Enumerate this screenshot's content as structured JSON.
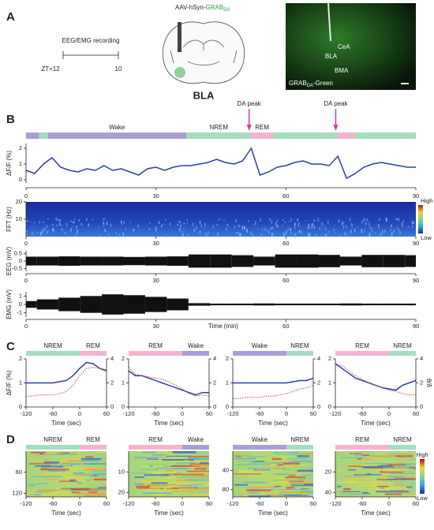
{
  "figure": {
    "letters": [
      "A",
      "B",
      "C",
      "D"
    ],
    "state_colors": {
      "Wake": "#aa9fd4",
      "NREM": "#a6dcbf",
      "REM": "#f5b3d2"
    },
    "panel_a": {
      "recording": "EEG/EMG recording",
      "start": "ZT=12",
      "end": "10",
      "virus_prefix": "AAV-hSyn-",
      "sensor": "GRAB",
      "sensor_sub": "DA",
      "region": "BLA",
      "image_labels": [
        "CeA",
        "BLA",
        "BMA"
      ],
      "caption_sensor": "GRAB",
      "caption_sub": "DA",
      "caption_suffix": "-Green"
    }
  },
  "chart_data": [
    {
      "type": "line",
      "ylabel": "ΔF/F (%)",
      "xlim": [
        0,
        90
      ],
      "xticks": [
        0,
        30,
        60,
        90
      ],
      "ylim": [
        -0.2,
        2.3
      ],
      "yticks": [
        0,
        1,
        2
      ],
      "segments": [
        {
          "state": "Wake",
          "start": 0,
          "end": 3
        },
        {
          "state": "NREM",
          "start": 3,
          "end": 5
        },
        {
          "state": "Wake",
          "start": 5,
          "end": 37
        },
        {
          "state": "NREM",
          "start": 37,
          "end": 52
        },
        {
          "state": "REM",
          "start": 52,
          "end": 57
        },
        {
          "state": "NREM",
          "start": 57,
          "end": 72
        },
        {
          "state": "REM",
          "start": 72,
          "end": 76
        },
        {
          "state": "NREM",
          "start": 76,
          "end": 90
        }
      ],
      "annotations": [
        {
          "text": "DA peak",
          "x": 51.5
        },
        {
          "text": "DA peak",
          "x": 71.5
        }
      ],
      "x": [
        0,
        2,
        4,
        6,
        8,
        10,
        12,
        14,
        16,
        18,
        20,
        22,
        24,
        26,
        28,
        30,
        32,
        34,
        36,
        38,
        40,
        42,
        44,
        46,
        48,
        50,
        52,
        54,
        56,
        58,
        60,
        62,
        64,
        66,
        68,
        70,
        72,
        74,
        76,
        78,
        80,
        82,
        84,
        86,
        88,
        90
      ],
      "series": [
        {
          "color": "#2d3f9f",
          "values": [
            0.6,
            0.4,
            1.0,
            1.4,
            0.8,
            0.6,
            0.5,
            0.7,
            0.6,
            0.9,
            0.6,
            0.7,
            0.5,
            0.3,
            0.7,
            0.8,
            0.6,
            0.8,
            0.9,
            0.9,
            1.0,
            1.1,
            1.3,
            1.1,
            1.0,
            1.2,
            2.0,
            0.3,
            0.5,
            0.8,
            0.9,
            1.1,
            1.2,
            1.0,
            1.0,
            0.9,
            1.5,
            0.1,
            0.4,
            0.8,
            1.0,
            1.1,
            1.0,
            0.9,
            0.8,
            0.8
          ]
        }
      ]
    },
    {
      "type": "heatmap",
      "ylabel": "FFT (Hz)",
      "xlim": [
        0,
        90
      ],
      "xticks": [
        0,
        30,
        60,
        90
      ],
      "ylim": [
        0,
        20
      ],
      "yticks": [
        10,
        20
      ],
      "colorbar": [
        "High",
        "Low"
      ]
    },
    {
      "type": "envelope",
      "ylabel": "EEG (mV)",
      "xlim": [
        0,
        90
      ],
      "xticks": [
        0,
        30,
        60,
        90
      ],
      "ylim": [
        -0.7,
        0.7
      ],
      "yticks": [
        -0.5,
        0,
        0.5
      ],
      "color": "#111111",
      "x": [
        0,
        5,
        10,
        15,
        20,
        25,
        30,
        35,
        40,
        45,
        50,
        55,
        60,
        65,
        70,
        75,
        80,
        85,
        90
      ],
      "values": [
        0.3,
        0.3,
        0.32,
        0.3,
        0.3,
        0.28,
        0.3,
        0.32,
        0.45,
        0.45,
        0.4,
        0.3,
        0.45,
        0.45,
        0.42,
        0.3,
        0.42,
        0.42,
        0.4
      ]
    },
    {
      "type": "envelope",
      "ylabel": "EMG (mV)",
      "xlabel": "Time (min)",
      "xlim": [
        0,
        90
      ],
      "xticks": [
        0,
        30,
        60,
        90
      ],
      "ylim": [
        -1.5,
        1.5
      ],
      "yticks": [
        -1,
        0,
        1
      ],
      "color": "#111111",
      "x": [
        0,
        5,
        10,
        15,
        20,
        25,
        30,
        35,
        40,
        45,
        50,
        55,
        60,
        65,
        70,
        75,
        80,
        85,
        90
      ],
      "values": [
        0.4,
        0.6,
        0.8,
        1.0,
        1.2,
        1.1,
        0.9,
        0.7,
        0.15,
        0.1,
        0.1,
        0.12,
        0.1,
        0.1,
        0.1,
        0.12,
        0.1,
        0.1,
        0.1
      ]
    },
    {
      "type": "line",
      "ylabel": "ΔF/F (%)",
      "xlabel": "Time (sec)",
      "xlim": [
        -120,
        60
      ],
      "xticks": [
        -120,
        -60,
        0,
        60
      ],
      "ylim": [
        0,
        2
      ],
      "yticks": [
        0,
        1,
        2
      ],
      "y2lim": [
        0,
        4
      ],
      "y2ticks": [
        0,
        2,
        4
      ],
      "segments": [
        {
          "state": "NREM",
          "start": -120,
          "end": 0
        },
        {
          "state": "REM",
          "start": 0,
          "end": 60
        }
      ],
      "x": [
        -120,
        -105,
        -90,
        -75,
        -60,
        -45,
        -30,
        -15,
        0,
        15,
        30,
        45,
        60
      ],
      "series": [
        {
          "color": "#2d3f9f",
          "values": [
            1.0,
            1.0,
            1.0,
            1.0,
            1.0,
            1.05,
            1.1,
            1.3,
            1.6,
            1.85,
            1.8,
            1.6,
            1.5
          ]
        },
        {
          "color": "#d9403a",
          "axis": "y2",
          "dash": true,
          "values": [
            0.9,
            0.9,
            1.0,
            1.0,
            1.0,
            1.1,
            1.3,
            1.8,
            2.6,
            3.2,
            3.3,
            3.2,
            3.1
          ]
        }
      ]
    },
    {
      "type": "line",
      "xlabel": "Time (sec)",
      "xlim": [
        -120,
        60
      ],
      "xticks": [
        -120,
        -60,
        0,
        60
      ],
      "ylim": [
        0,
        2
      ],
      "yticks": [
        0,
        1,
        2
      ],
      "y2lim": [
        0,
        4
      ],
      "y2ticks": [
        0,
        2,
        4
      ],
      "segments": [
        {
          "state": "REM",
          "start": -120,
          "end": 0
        },
        {
          "state": "Wake",
          "start": 0,
          "end": 60
        }
      ],
      "x": [
        -120,
        -105,
        -90,
        -75,
        -60,
        -45,
        -30,
        -15,
        0,
        15,
        30,
        45,
        60
      ],
      "series": [
        {
          "color": "#2d3f9f",
          "values": [
            1.5,
            1.3,
            1.3,
            1.2,
            1.1,
            1.0,
            0.9,
            0.8,
            0.7,
            0.6,
            0.5,
            0.6,
            0.6
          ]
        },
        {
          "color": "#d9403a",
          "axis": "y2",
          "dash": true,
          "values": [
            3.3,
            2.7,
            2.6,
            2.5,
            2.4,
            2.3,
            2.1,
            1.8,
            1.5,
            1.1,
            0.9,
            1.0,
            0.9
          ]
        }
      ]
    },
    {
      "type": "line",
      "xlabel": "Time (sec)",
      "xlim": [
        -120,
        60
      ],
      "xticks": [
        -120,
        -60,
        0,
        60
      ],
      "ylim": [
        0,
        2
      ],
      "yticks": [
        0,
        1,
        2
      ],
      "y2lim": [
        0,
        4
      ],
      "y2ticks": [
        0,
        2,
        4
      ],
      "segments": [
        {
          "state": "Wake",
          "start": -120,
          "end": 0
        },
        {
          "state": "NREM",
          "start": 0,
          "end": 60
        }
      ],
      "x": [
        -120,
        -105,
        -90,
        -75,
        -60,
        -45,
        -30,
        -15,
        0,
        15,
        30,
        45,
        60
      ],
      "series": [
        {
          "color": "#2d3f9f",
          "values": [
            1.0,
            1.0,
            1.0,
            1.0,
            1.0,
            1.0,
            1.0,
            1.0,
            1.0,
            1.05,
            1.1,
            1.1,
            1.2
          ]
        },
        {
          "color": "#d9403a",
          "axis": "y2",
          "dash": true,
          "values": [
            0.7,
            0.7,
            0.8,
            0.8,
            0.8,
            0.9,
            0.9,
            1.0,
            1.1,
            1.3,
            1.5,
            1.6,
            1.8
          ]
        }
      ]
    },
    {
      "type": "line",
      "xlabel": "Time (sec)",
      "y2label": "θ/δ",
      "xlim": [
        -120,
        60
      ],
      "xticks": [
        -120,
        -60,
        0,
        60
      ],
      "ylim": [
        0,
        2
      ],
      "yticks": [
        0,
        1,
        2
      ],
      "y2lim": [
        0,
        4
      ],
      "y2ticks": [
        0,
        2,
        4
      ],
      "segments": [
        {
          "state": "REM",
          "start": -120,
          "end": 0
        },
        {
          "state": "NREM",
          "start": 0,
          "end": 60
        }
      ],
      "x": [
        -120,
        -105,
        -90,
        -75,
        -60,
        -45,
        -30,
        -15,
        0,
        15,
        30,
        45,
        60
      ],
      "series": [
        {
          "color": "#2d3f9f",
          "values": [
            1.8,
            1.6,
            1.4,
            1.2,
            1.1,
            1.0,
            0.9,
            0.8,
            0.75,
            0.7,
            0.9,
            1.0,
            1.1
          ]
        },
        {
          "color": "#d9403a",
          "axis": "y2",
          "dash": true,
          "values": [
            3.6,
            3.4,
            3.0,
            2.6,
            2.3,
            2.0,
            1.8,
            1.6,
            1.4,
            1.3,
            1.1,
            1.0,
            1.0
          ]
        }
      ]
    },
    {
      "type": "heatmap",
      "xlabel": "Time (sec)",
      "xlim": [
        -120,
        60
      ],
      "xticks": [
        -120,
        -60,
        0,
        60
      ],
      "ylim": [
        0,
        130
      ],
      "yticks": [
        60,
        120
      ],
      "yreverse": true,
      "segments": [
        {
          "state": "NREM",
          "start": -120,
          "end": 0
        },
        {
          "state": "REM",
          "start": 0,
          "end": 60
        }
      ]
    },
    {
      "type": "heatmap",
      "xlabel": "Time (sec)",
      "xlim": [
        -120,
        60
      ],
      "xticks": [
        -120,
        -60,
        0,
        60
      ],
      "ylim": [
        0,
        22
      ],
      "yticks": [
        10,
        20
      ],
      "yreverse": true,
      "segments": [
        {
          "state": "REM",
          "start": -120,
          "end": 0
        },
        {
          "state": "Wake",
          "start": 0,
          "end": 60
        }
      ]
    },
    {
      "type": "heatmap",
      "xlabel": "Time (sec)",
      "xlim": [
        -120,
        60
      ],
      "xticks": [
        -120,
        -60,
        0,
        60
      ],
      "ylim": [
        0,
        95
      ],
      "yticks": [
        40,
        80
      ],
      "yreverse": true,
      "segments": [
        {
          "state": "Wake",
          "start": -120,
          "end": 0
        },
        {
          "state": "NREM",
          "start": 0,
          "end": 60
        }
      ]
    },
    {
      "type": "heatmap",
      "xlabel": "Time (sec)",
      "xlim": [
        -120,
        60
      ],
      "xticks": [
        -120,
        -60,
        0,
        60
      ],
      "ylim": [
        0,
        44
      ],
      "yticks": [
        20,
        40
      ],
      "yreverse": true,
      "colorbar": [
        "High",
        "Low"
      ],
      "segments": [
        {
          "state": "REM",
          "start": -120,
          "end": 0
        },
        {
          "state": "NREM",
          "start": 0,
          "end": 60
        }
      ]
    }
  ]
}
